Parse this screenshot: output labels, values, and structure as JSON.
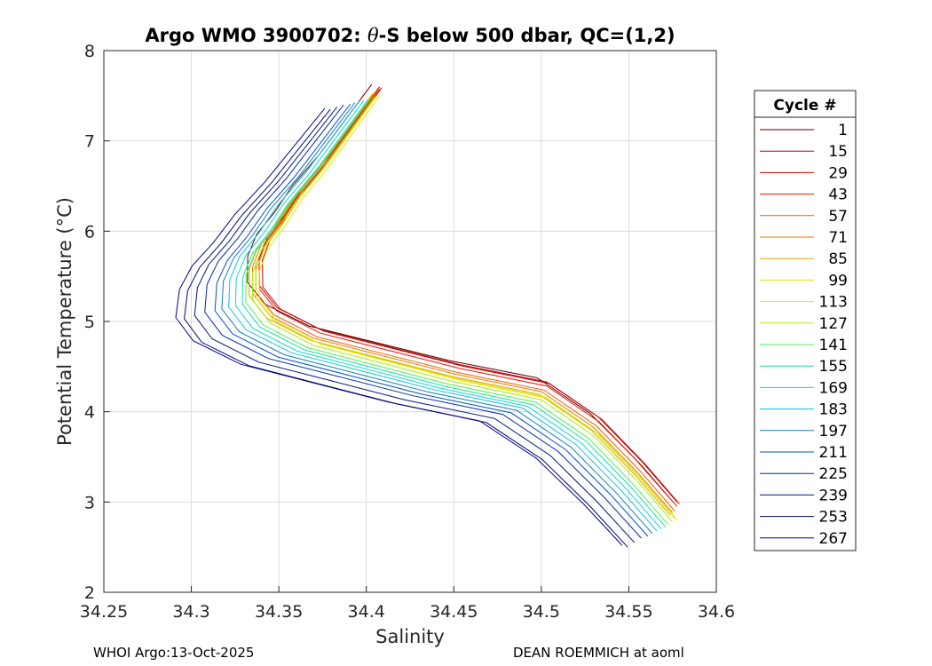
{
  "chart_data": {
    "type": "line",
    "title_parts": [
      "Argo WMO 3900702: ",
      "θ",
      "-S below 500 dbar,  QC=(1,2)"
    ],
    "xlabel": "Salinity",
    "ylabel": "Potential Temperature (°C)",
    "xlim": [
      34.25,
      34.6
    ],
    "ylim": [
      2,
      8
    ],
    "xticks": [
      "34.25",
      "34.3",
      "34.35",
      "34.4",
      "34.45",
      "34.5",
      "34.55",
      "34.6"
    ],
    "yticks": [
      "2",
      "3",
      "4",
      "5",
      "6",
      "7",
      "8"
    ],
    "grid": true,
    "legend": {
      "title": "Cycle #",
      "position": "right",
      "entries": [
        "1",
        "15",
        "29",
        "43",
        "57",
        "71",
        "85",
        "99",
        "113",
        "127",
        "141",
        "155",
        "169",
        "183",
        "197",
        "211",
        "225",
        "239",
        "253",
        "267"
      ],
      "colors": [
        "#5a0000",
        "#b30000",
        "#d40000",
        "#e81500",
        "#f25a00",
        "#e08000",
        "#d9a800",
        "#ecd800",
        "#d8f000",
        "#a8f000",
        "#52f052",
        "#10e2a0",
        "#10d8d0",
        "#10c0ea",
        "#1080c0",
        "#0050d0",
        "#0028a8",
        "#001880",
        "#000a60",
        "#000090"
      ]
    },
    "series_template": {
      "salinity": [
        34.405,
        34.39,
        34.375,
        34.36,
        34.35,
        34.34,
        34.335,
        34.335,
        34.345,
        34.37,
        34.41,
        34.45,
        34.5,
        34.53,
        34.555,
        34.575
      ],
      "theta": [
        7.5,
        7.1,
        6.7,
        6.35,
        6.05,
        5.8,
        5.55,
        5.25,
        5.0,
        4.75,
        4.55,
        4.35,
        4.15,
        3.75,
        3.25,
        2.8
      ]
    },
    "series": [
      {
        "name": "1",
        "salinity_offset": -0.003,
        "theta_offset": 0.25
      },
      {
        "name": "15",
        "salinity_offset": 0.004,
        "theta_offset": 0.2
      },
      {
        "name": "29",
        "salinity_offset": 0.006,
        "theta_offset": 0.18
      },
      {
        "name": "43",
        "salinity_offset": 0.004,
        "theta_offset": 0.15
      },
      {
        "name": "57",
        "salinity_offset": 0.002,
        "theta_offset": 0.1
      },
      {
        "name": "71",
        "salinity_offset": 0.0,
        "theta_offset": 0.08
      },
      {
        "name": "85",
        "salinity_offset": -0.002,
        "theta_offset": 0.05
      },
      {
        "name": "99",
        "salinity_offset": 0.002,
        "theta_offset": 0.02
      },
      {
        "name": "113",
        "salinity_offset": 0.004,
        "theta_offset": 0.0
      },
      {
        "name": "127",
        "salinity_offset": 0.0,
        "theta_offset": -0.02
      },
      {
        "name": "141",
        "salinity_offset": -0.004,
        "theta_offset": -0.05
      },
      {
        "name": "155",
        "salinity_offset": -0.006,
        "theta_offset": -0.08
      },
      {
        "name": "169",
        "salinity_offset": -0.01,
        "theta_offset": -0.1
      },
      {
        "name": "183",
        "salinity_offset": -0.014,
        "theta_offset": -0.12
      },
      {
        "name": "197",
        "salinity_offset": -0.018,
        "theta_offset": -0.15
      },
      {
        "name": "211",
        "salinity_offset": -0.022,
        "theta_offset": -0.18
      },
      {
        "name": "225",
        "salinity_offset": -0.028,
        "theta_offset": -0.2
      },
      {
        "name": "239",
        "salinity_offset": -0.034,
        "theta_offset": -0.25
      },
      {
        "name": "253",
        "salinity_offset": -0.04,
        "theta_offset": -0.3
      },
      {
        "name": "267",
        "salinity_offset": -0.045,
        "theta_offset": -0.28
      }
    ]
  },
  "footer": {
    "left": "WHOI Argo:13-Oct-2025",
    "right": "DEAN ROEMMICH at aoml"
  }
}
